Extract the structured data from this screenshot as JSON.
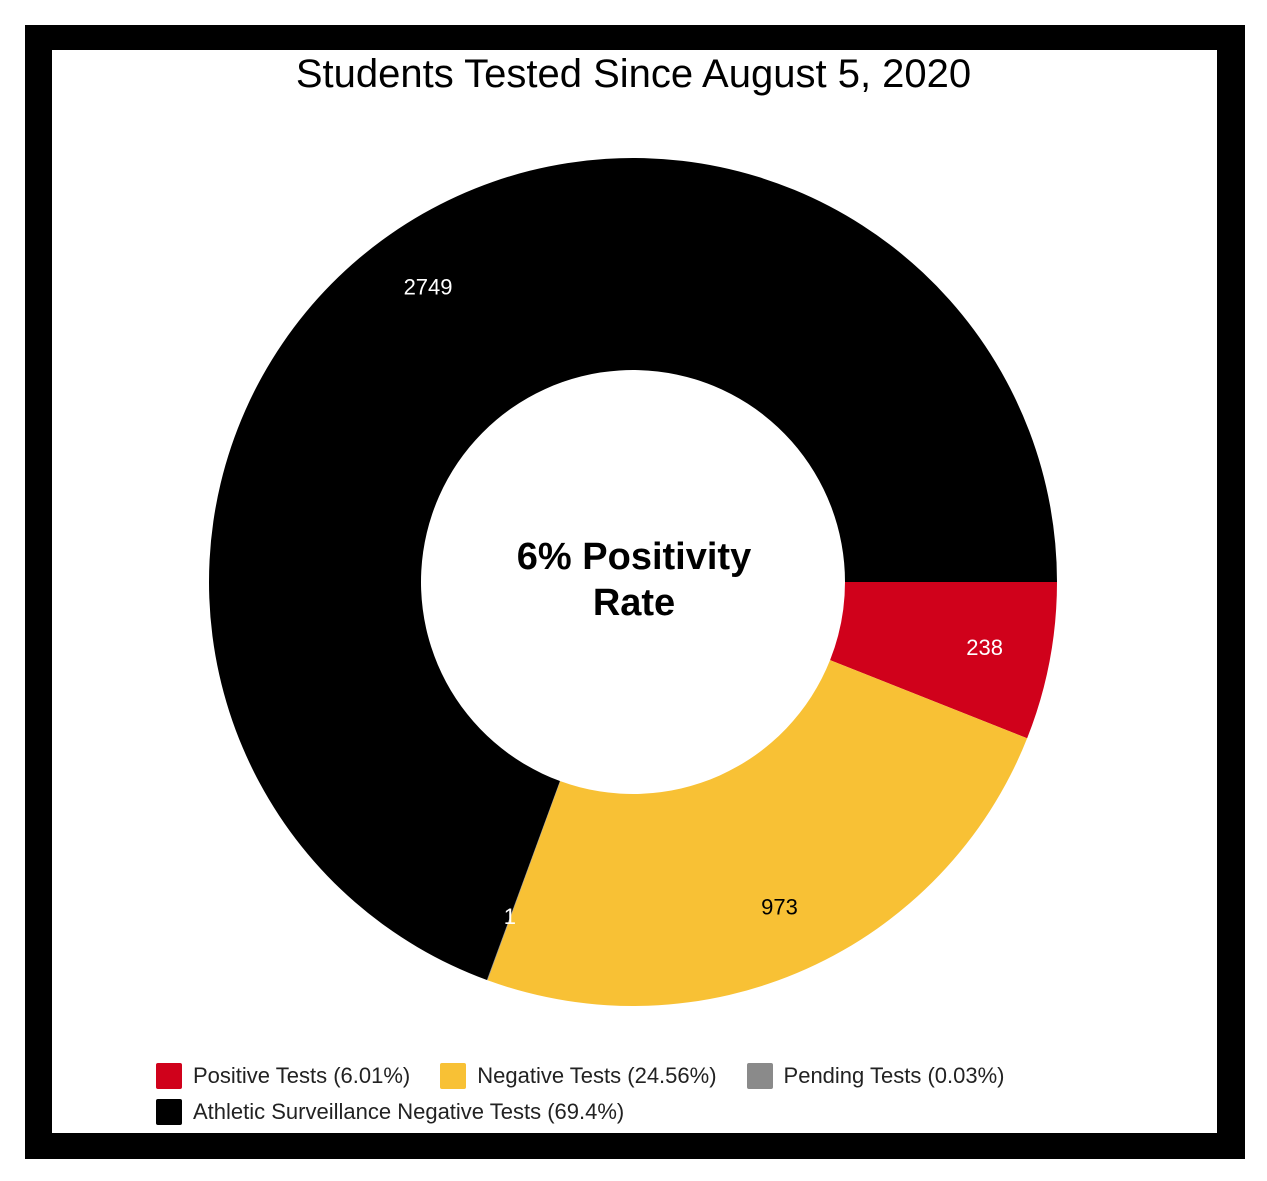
{
  "chart_data": {
    "type": "pie",
    "title": "Students Tested Since August 5, 2020",
    "center_label_line1": "6% Positivity",
    "center_label_line2": "Rate",
    "series": [
      {
        "name": "Positive Tests (6.01%)",
        "value": 238,
        "label": "238",
        "color": "#d0011b",
        "label_color": "#ffffff"
      },
      {
        "name": "Negative Tests (24.56%)",
        "value": 973,
        "label": "973",
        "color": "#f8c135",
        "label_color": "#000000"
      },
      {
        "name": "Pending Tests (0.03%)",
        "value": 1,
        "label": "1",
        "color": "#8a8a8a",
        "label_color": "#ffffff"
      },
      {
        "name": "Athletic Surveillance Negative Tests (69.4%)",
        "value": 2749,
        "label": "2749",
        "color": "#000000",
        "label_color": "#ffffff"
      }
    ],
    "start_position": "3 o'clock, clockwise",
    "legend_position": "bottom"
  }
}
